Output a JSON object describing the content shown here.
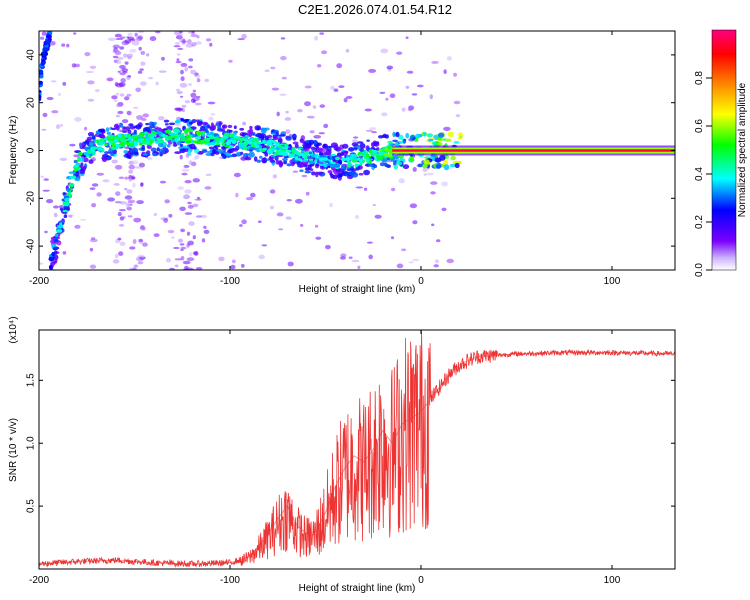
{
  "title": "C2E1.2026.074.01.54.R12",
  "chart_data": [
    {
      "type": "heatmap",
      "name": "spectrogram",
      "xlabel": "Height of straight line (km)",
      "ylabel": "Frequency (Hz)",
      "xlim": [
        -200,
        133
      ],
      "ylim": [
        -50,
        50
      ],
      "xticks": [
        -200,
        -100,
        0,
        100
      ],
      "xtick_labels": [
        "-200",
        "-100",
        "0",
        "100"
      ],
      "yticks": [
        -40,
        -20,
        0,
        20,
        40
      ],
      "ytick_labels": [
        "-40",
        "-20",
        "0",
        "20",
        "40"
      ],
      "colorbar": {
        "label": "Normalized spectral amplitude",
        "range": [
          0,
          1
        ],
        "ticks": [
          0.0,
          0.2,
          0.4,
          0.6,
          0.8
        ],
        "tick_labels": [
          "0.0",
          "0.2",
          "0.4",
          "0.6",
          "0.8"
        ],
        "colors": [
          "#ffffff",
          "#7a00ff",
          "#0000ff",
          "#00ffff",
          "#00ff00",
          "#ffff00",
          "#ff8000",
          "#ff0000",
          "#ff0080"
        ]
      },
      "ridge": {
        "x": [
          -194,
          -190,
          -186,
          -182,
          -178,
          -172,
          -165,
          -158,
          -150,
          -140,
          -130,
          -120,
          -110,
          -100,
          -90,
          -80,
          -70,
          -60,
          -50,
          -40,
          -30,
          -20,
          -15,
          0,
          50,
          133
        ],
        "y": [
          -48,
          -35,
          -22,
          -12,
          -3,
          1,
          3,
          4,
          4,
          5,
          6,
          6,
          5,
          4,
          3,
          2,
          0,
          -2,
          -4,
          -5,
          -3,
          -1,
          0,
          0,
          0,
          0
        ],
        "amplitude": [
          0.3,
          0.35,
          0.4,
          0.45,
          0.45,
          0.4,
          0.45,
          0.5,
          0.45,
          0.45,
          0.45,
          0.5,
          0.45,
          0.45,
          0.4,
          0.45,
          0.4,
          0.4,
          0.35,
          0.4,
          0.45,
          0.5,
          0.6,
          0.8,
          0.95,
          0.95
        ]
      },
      "early_branch": {
        "x": [
          -200,
          -199,
          -198,
          -196,
          -194
        ],
        "y": [
          20,
          30,
          38,
          44,
          48
        ]
      },
      "carrier_line": {
        "y": 0,
        "x_start": -15,
        "x_end": 133,
        "amplitude": 0.95
      }
    },
    {
      "type": "line",
      "name": "snr",
      "xlabel": "Height of straight line (km)",
      "ylabel": "SNR (10 * v/v)",
      "scale_label": "(x10⁴)",
      "xlim": [
        -200,
        133
      ],
      "ylim": [
        0,
        1.9
      ],
      "xticks": [
        -200,
        -100,
        0,
        100
      ],
      "xtick_labels": [
        "-200",
        "-100",
        "0",
        "100"
      ],
      "yticks": [
        0.5,
        1.0,
        1.5
      ],
      "ytick_labels": [
        "0.5",
        "1.0",
        "1.5"
      ],
      "series": [
        {
          "name": "SNR",
          "color": "#ee3333",
          "x": [
            -200,
            -180,
            -160,
            -140,
            -120,
            -100,
            -95,
            -90,
            -85,
            -80,
            -75,
            -70,
            -65,
            -60,
            -55,
            -50,
            -45,
            -40,
            -35,
            -30,
            -25,
            -20,
            -15,
            -10,
            -5,
            0,
            5,
            10,
            15,
            20,
            25,
            30,
            40,
            50,
            75,
            100,
            133
          ],
          "y": [
            0.04,
            0.06,
            0.07,
            0.05,
            0.04,
            0.05,
            0.07,
            0.1,
            0.18,
            0.28,
            0.4,
            0.5,
            0.35,
            0.28,
            0.3,
            0.45,
            0.65,
            0.8,
            0.9,
            0.85,
            0.95,
            1.1,
            1.0,
            1.15,
            1.2,
            1.25,
            1.35,
            1.45,
            1.55,
            1.62,
            1.66,
            1.69,
            1.7,
            1.71,
            1.72,
            1.72,
            1.71
          ]
        }
      ]
    }
  ]
}
